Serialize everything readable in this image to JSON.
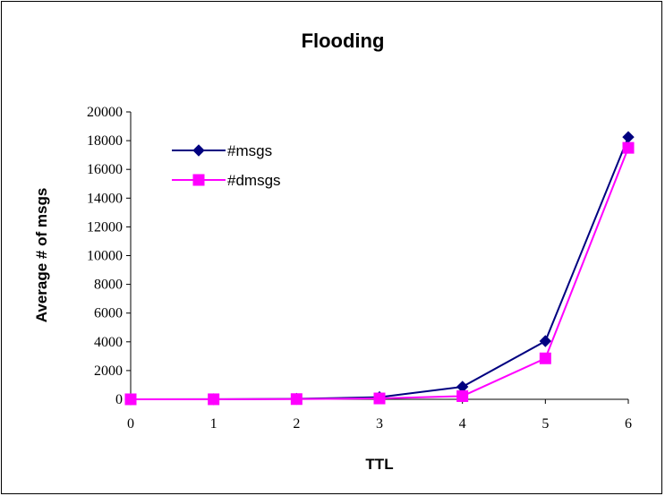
{
  "chart_data": {
    "type": "line",
    "title": "Flooding",
    "xlabel": "TTL",
    "ylabel": "Average # of msgs",
    "x": [
      0,
      1,
      2,
      3,
      4,
      5,
      6
    ],
    "ylim": [
      0,
      20000
    ],
    "yticks": [
      0,
      2000,
      4000,
      6000,
      8000,
      10000,
      12000,
      14000,
      16000,
      18000,
      20000
    ],
    "grid": false,
    "legend_position": "top-left inside plot",
    "series": [
      {
        "name": "#msgs",
        "color": "#000080",
        "marker": "diamond",
        "values": [
          1,
          5,
          30,
          150,
          870,
          4050,
          18250
        ]
      },
      {
        "name": "#dmsgs",
        "color": "#ff00ff",
        "marker": "square",
        "values": [
          1,
          3,
          15,
          60,
          220,
          2850,
          17500
        ]
      }
    ]
  }
}
